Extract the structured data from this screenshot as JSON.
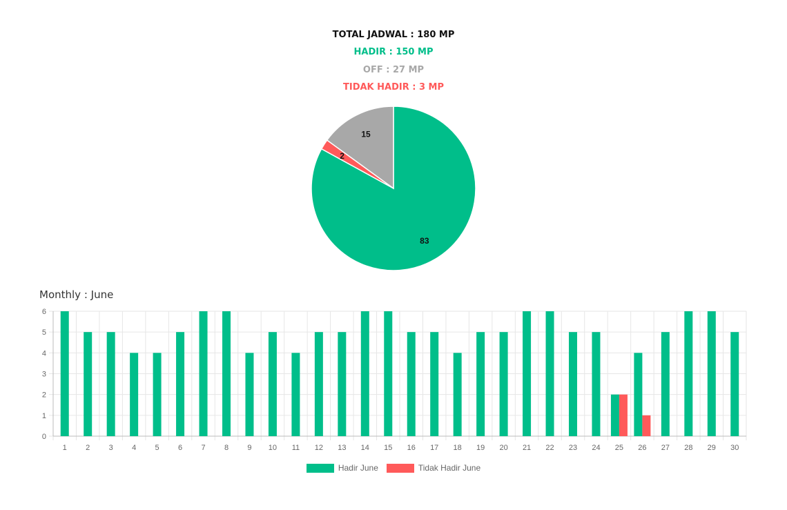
{
  "summary": {
    "total": "TOTAL JADWAL : 180 MP",
    "hadir": "HADIR : 150 MP",
    "off": "OFF : 27 MP",
    "tidak_hadir": "TIDAK HADIR : 3 MP"
  },
  "monthly_title": "Monthly : June",
  "colors": {
    "hadir": "#00be8a",
    "off": "#a8a8a8",
    "tidak_hadir": "#ff5a5a",
    "grid": "#e6e6e6",
    "axis_text": "#666666"
  },
  "chart_data": [
    {
      "type": "pie",
      "slices": [
        {
          "label_text": "83",
          "value": 83,
          "color": "#00be8a"
        },
        {
          "label_text": "2",
          "value": 2,
          "color": "#ff5a5a"
        },
        {
          "label_text": "15",
          "value": 15,
          "color": "#a8a8a8"
        }
      ]
    },
    {
      "type": "bar",
      "categories": [
        "1",
        "2",
        "3",
        "4",
        "5",
        "6",
        "7",
        "8",
        "9",
        "10",
        "11",
        "12",
        "13",
        "14",
        "15",
        "16",
        "17",
        "18",
        "19",
        "20",
        "21",
        "22",
        "23",
        "24",
        "25",
        "26",
        "27",
        "28",
        "29",
        "30"
      ],
      "series": [
        {
          "name": "Hadir June",
          "color": "#00be8a",
          "values": [
            6,
            5,
            5,
            4,
            4,
            5,
            6,
            6,
            4,
            5,
            4,
            5,
            5,
            6,
            6,
            5,
            5,
            4,
            5,
            5,
            6,
            6,
            5,
            5,
            2,
            4,
            5,
            6,
            6,
            5
          ]
        },
        {
          "name": "Tidak Hadir June",
          "color": "#ff5a5a",
          "values": [
            0,
            0,
            0,
            0,
            0,
            0,
            0,
            0,
            0,
            0,
            0,
            0,
            0,
            0,
            0,
            0,
            0,
            0,
            0,
            0,
            0,
            0,
            0,
            0,
            2,
            1,
            0,
            0,
            0,
            0
          ]
        }
      ],
      "yticks": [
        0,
        1,
        2,
        3,
        4,
        5,
        6
      ],
      "ylim": [
        0,
        6
      ],
      "grid": true,
      "legend": "bottom-center"
    }
  ]
}
